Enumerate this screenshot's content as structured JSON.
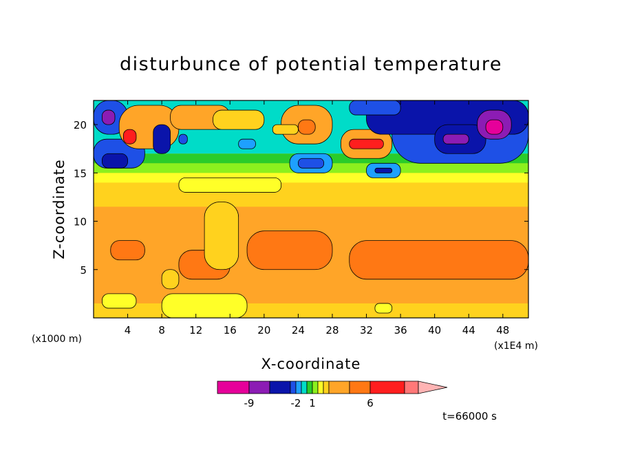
{
  "chart_data": {
    "type": "heatmap",
    "title": "disturbunce of potential temperature",
    "xlabel": "X-coordinate",
    "ylabel": "Z-coordinate",
    "x_unit_label": "(x1E4 m)",
    "y_unit_label": "(x1000 m)",
    "xlim": [
      0,
      51
    ],
    "ylim": [
      0,
      22.5
    ],
    "x_ticks": [
      4,
      8,
      12,
      16,
      20,
      24,
      28,
      32,
      36,
      40,
      44,
      48
    ],
    "y_ticks": [
      5,
      10,
      15,
      20
    ],
    "time_label": "t=66000 s",
    "colorbar": {
      "colors": [
        "#e6009a",
        "#8c1cb4",
        "#0a14aa",
        "#1e50e6",
        "#1ea0ff",
        "#00dcc8",
        "#2acc2a",
        "#8cf01e",
        "#ffff28",
        "#ffd21e",
        "#ffa528",
        "#ff7814",
        "#ff1e1e",
        "#ff7878",
        "#ffb4b4"
      ],
      "boundaries": [
        -12,
        -9,
        -6,
        -3,
        -2,
        -1,
        0,
        1,
        2,
        3,
        4,
        5,
        6,
        9,
        12
      ],
      "tick_labels": [
        {
          "text": "-9",
          "at": -9
        },
        {
          "text": "-2",
          "at": -2
        },
        {
          "text": "1",
          "at": 1
        },
        {
          "text": "6",
          "at": 6
        }
      ]
    },
    "regions": [
      {
        "x": [
          0,
          51
        ],
        "z": [
          0,
          22.5
        ],
        "value": 3.5
      },
      {
        "x": [
          0,
          51
        ],
        "z": [
          0,
          1.5
        ],
        "value": 3.5
      },
      {
        "x": [
          0,
          51
        ],
        "z": [
          11.5,
          14
        ],
        "value": 3.5
      },
      {
        "x": [
          0,
          51
        ],
        "z": [
          1.5,
          11.5
        ],
        "value": 4.5
      },
      {
        "x": [
          2,
          6
        ],
        "z": [
          6,
          8
        ],
        "value": 5.5
      },
      {
        "x": [
          10,
          16
        ],
        "z": [
          4,
          7
        ],
        "value": 5.5
      },
      {
        "x": [
          18,
          28
        ],
        "z": [
          5,
          9
        ],
        "value": 5.5
      },
      {
        "x": [
          30,
          51
        ],
        "z": [
          4,
          8
        ],
        "value": 5.5
      },
      {
        "x": [
          1,
          5
        ],
        "z": [
          1,
          2.5
        ],
        "value": 2.5
      },
      {
        "x": [
          8,
          18
        ],
        "z": [
          0,
          2.5
        ],
        "value": 2.5
      },
      {
        "x": [
          33,
          35
        ],
        "z": [
          0.5,
          1.5
        ],
        "value": 2.5
      },
      {
        "x": [
          0,
          51
        ],
        "z": [
          14,
          15
        ],
        "value": 2.5
      },
      {
        "x": [
          0,
          51
        ],
        "z": [
          15,
          16
        ],
        "value": 1.5
      },
      {
        "x": [
          10,
          22
        ],
        "z": [
          13,
          14.5
        ],
        "value": 2.5
      },
      {
        "x": [
          0,
          51
        ],
        "z": [
          16,
          17
        ],
        "value": 0.5
      },
      {
        "x": [
          0,
          51
        ],
        "z": [
          17,
          22.5
        ],
        "value": -0.5
      },
      {
        "x": [
          0,
          6
        ],
        "z": [
          15.5,
          18.5
        ],
        "value": -2.5
      },
      {
        "x": [
          1,
          4
        ],
        "z": [
          15.5,
          17
        ],
        "value": -4.5
      },
      {
        "x": [
          0,
          4
        ],
        "z": [
          19,
          22.5
        ],
        "value": -2.5
      },
      {
        "x": [
          1,
          2.5
        ],
        "z": [
          20,
          21.5
        ],
        "value": -7.5
      },
      {
        "x": [
          3,
          10
        ],
        "z": [
          17.5,
          22
        ],
        "value": 4.5
      },
      {
        "x": [
          3.5,
          5
        ],
        "z": [
          18,
          19.5
        ],
        "value": 7.5
      },
      {
        "x": [
          9,
          16
        ],
        "z": [
          19.5,
          22
        ],
        "value": 4.5
      },
      {
        "x": [
          14,
          20
        ],
        "z": [
          19.5,
          21.5
        ],
        "value": 3.5
      },
      {
        "x": [
          7,
          9
        ],
        "z": [
          17,
          20
        ],
        "value": -4.5
      },
      {
        "x": [
          10,
          11
        ],
        "z": [
          18,
          19
        ],
        "value": -2.5
      },
      {
        "x": [
          17,
          19
        ],
        "z": [
          17.5,
          18.5
        ],
        "value": -1.5
      },
      {
        "x": [
          22,
          28
        ],
        "z": [
          18,
          22
        ],
        "value": 4.5
      },
      {
        "x": [
          24,
          26
        ],
        "z": [
          19,
          20.5
        ],
        "value": 5.5
      },
      {
        "x": [
          21,
          24
        ],
        "z": [
          19,
          20
        ],
        "value": 3.5
      },
      {
        "x": [
          23,
          28
        ],
        "z": [
          15,
          17
        ],
        "value": -1.5
      },
      {
        "x": [
          24,
          27
        ],
        "z": [
          15.5,
          16.5
        ],
        "value": -2.5
      },
      {
        "x": [
          29,
          35
        ],
        "z": [
          16.5,
          19.5
        ],
        "value": 4.5
      },
      {
        "x": [
          30,
          34
        ],
        "z": [
          17.5,
          18.5
        ],
        "value": 7.5
      },
      {
        "x": [
          32,
          36
        ],
        "z": [
          14.5,
          16
        ],
        "value": -1.5
      },
      {
        "x": [
          33,
          35
        ],
        "z": [
          15,
          15.5
        ],
        "value": -4.5
      },
      {
        "x": [
          35,
          51
        ],
        "z": [
          16,
          22.5
        ],
        "value": -2.5
      },
      {
        "x": [
          32,
          51
        ],
        "z": [
          19,
          22.5
        ],
        "value": -4.5
      },
      {
        "x": [
          40,
          46
        ],
        "z": [
          17,
          20
        ],
        "value": -4.5
      },
      {
        "x": [
          41,
          44
        ],
        "z": [
          18,
          19
        ],
        "value": -7.5
      },
      {
        "x": [
          45,
          49
        ],
        "z": [
          18.5,
          21.5
        ],
        "value": -7.5
      },
      {
        "x": [
          46,
          48
        ],
        "z": [
          19,
          20.5
        ],
        "value": -10.5
      },
      {
        "x": [
          30,
          36
        ],
        "z": [
          21,
          22.5
        ],
        "value": -2.5
      },
      {
        "x": [
          13,
          17
        ],
        "z": [
          5,
          12
        ],
        "value": 3.5
      },
      {
        "x": [
          8,
          10
        ],
        "z": [
          3,
          5
        ],
        "value": 3.5
      }
    ]
  }
}
